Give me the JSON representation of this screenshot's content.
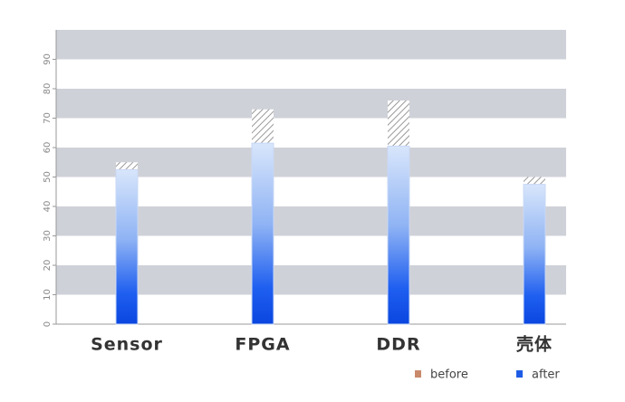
{
  "chart_data": {
    "type": "bar",
    "categories": [
      "Sensor",
      "FPGA",
      "DDR",
      "壳体"
    ],
    "series": [
      {
        "name": "before",
        "color": "#c98a6c",
        "values": [
          55,
          73,
          76,
          50
        ]
      },
      {
        "name": "after",
        "color": "#1e5ce6",
        "values": [
          52.5,
          61.5,
          60.5,
          47.5
        ]
      }
    ],
    "ylim": [
      0,
      100
    ],
    "yticks": [
      0,
      10,
      20,
      30,
      40,
      50,
      60,
      70,
      80,
      90
    ],
    "grid": "bands",
    "legend": "bottom-right"
  }
}
